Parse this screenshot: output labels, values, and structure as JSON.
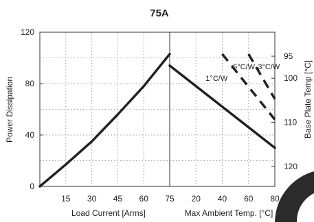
{
  "chart_data": {
    "type": "line",
    "title": "75A",
    "ylabel": "Power Dissipation",
    "ylim": [
      0,
      120
    ],
    "yticks": [
      0,
      40,
      80,
      120
    ],
    "right_ylabel": "Base Plate Temp [°C]",
    "right_yticks": [
      95,
      100,
      110,
      120
    ],
    "right_axis": "inverted",
    "grid": true,
    "left_panel": {
      "xlabel": "Load Current [Arms]",
      "xlim": [
        0,
        75
      ],
      "xticks": [
        15,
        30,
        45,
        60,
        75
      ],
      "series": [
        {
          "x": [
            0,
            15,
            30,
            45,
            60,
            75
          ],
          "y": [
            0,
            17,
            35,
            56,
            78,
            103
          ]
        }
      ]
    },
    "right_panel": {
      "xlabel": "Max Ambient Temp. [°C]",
      "xlim": [
        0,
        80
      ],
      "xticks": [
        20,
        40,
        60,
        80
      ],
      "series": [
        {
          "name": "1°C/W",
          "style": "solid",
          "x": [
            0,
            80
          ],
          "y": [
            94,
            30
          ]
        },
        {
          "name": ".5°C/W",
          "style": "dashed",
          "x": [
            40,
            80
          ],
          "y": [
            103,
            52
          ]
        },
        {
          "name": ".3°C/W",
          "style": "dashed",
          "x": [
            60,
            80
          ],
          "y": [
            103,
            68
          ]
        }
      ]
    }
  }
}
